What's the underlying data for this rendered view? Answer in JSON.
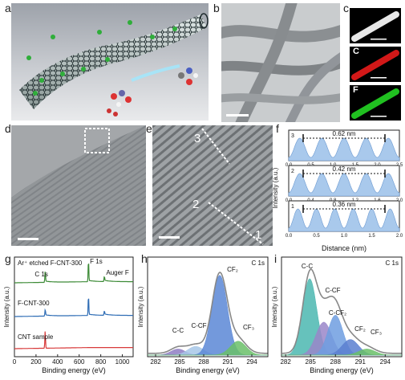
{
  "panels": {
    "a": {
      "label": "a"
    },
    "b": {
      "label": "b"
    },
    "c": {
      "label": "c",
      "channels": [
        "C",
        "F"
      ]
    },
    "d": {
      "label": "d"
    },
    "e": {
      "label": "e",
      "markers": [
        "3",
        "2",
        "1"
      ]
    },
    "f": {
      "label": "f"
    },
    "g": {
      "label": "g"
    },
    "h": {
      "label": "h"
    },
    "i": {
      "label": "i"
    }
  },
  "chart_data": [
    {
      "id": "f",
      "type": "line",
      "ylabel": "Intensity (a.u.)",
      "xlabel": "Distance (nm)",
      "subplots": [
        {
          "index": "3",
          "spacing_label": "0.62 nm",
          "xlim": [
            0,
            2.5
          ],
          "xticks": [
            "0.0",
            "0.5",
            "1.0",
            "1.5",
            "2.0",
            "2.5"
          ],
          "peaks": 5
        },
        {
          "index": "2",
          "spacing_label": "0.42 nm",
          "xlim": [
            0,
            2.0
          ],
          "xticks": [
            "0.0",
            "0.4",
            "0.8",
            "1.2",
            "1.6",
            "2.0"
          ],
          "peaks": 5
        },
        {
          "index": "1",
          "spacing_label": "0.36 nm",
          "xlim": [
            0,
            2.0
          ],
          "xticks": [
            "0.0",
            "0.5",
            "1.0",
            "1.5",
            "2.0"
          ],
          "peaks": 6
        }
      ]
    },
    {
      "id": "g",
      "type": "line",
      "xlabel": "Binding energy (eV)",
      "ylabel": "Intensity (a.u.)",
      "xlim": [
        0,
        1100
      ],
      "xticks": [
        "0",
        "200",
        "400",
        "600",
        "800",
        "1000"
      ],
      "series": [
        {
          "name": "Ar⁺ etched F-CNT-300",
          "color": "#3d8b37"
        },
        {
          "name": "F-CNT-300",
          "color": "#2f6db5"
        },
        {
          "name": "CNT sample",
          "color": "#d83a3a"
        }
      ],
      "annotations": [
        "C 1s",
        "F 1s",
        "Auger F"
      ]
    },
    {
      "id": "h",
      "type": "area",
      "xlabel": "Binding energy (eV)",
      "ylabel": "Intensity (a.u.)",
      "tag": "C 1s",
      "xlim": [
        281,
        296
      ],
      "xticks": [
        "282",
        "285",
        "288",
        "291",
        "294"
      ],
      "components": [
        {
          "name": "C-C",
          "center": 284.8,
          "height": 0.07,
          "width": 0.9,
          "color": "#8e7cc3"
        },
        {
          "name": "C-CF",
          "center": 287.0,
          "height": 0.1,
          "width": 1.0,
          "color": "#a7c7e7"
        },
        {
          "name": "CF₂",
          "center": 290.0,
          "height": 0.92,
          "width": 0.95,
          "color": "#5b87d6"
        },
        {
          "name": "CF₃",
          "center": 292.3,
          "height": 0.16,
          "width": 1.0,
          "color": "#6abf69"
        }
      ]
    },
    {
      "id": "i",
      "type": "area",
      "xlabel": "Binding energy (eV)",
      "ylabel": "Intensity (a.u.)",
      "tag": "C 1s",
      "xlim": [
        281.5,
        296
      ],
      "xticks": [
        "282",
        "285",
        "288",
        "291",
        "294"
      ],
      "components": [
        {
          "name": "C-C",
          "center": 284.9,
          "height": 0.88,
          "width": 0.85,
          "color": "#4bb7b0"
        },
        {
          "name": "C-CF",
          "center": 286.6,
          "height": 0.38,
          "width": 0.95,
          "color": "#9a86c9"
        },
        {
          "name": "C-CF₂",
          "center": 288.0,
          "height": 0.46,
          "width": 0.9,
          "color": "#6e9ee0"
        },
        {
          "name": "CF₂",
          "center": 289.8,
          "height": 0.18,
          "width": 1.0,
          "color": "#5b7fd0"
        },
        {
          "name": "CF₃",
          "center": 291.8,
          "height": 0.07,
          "width": 1.0,
          "color": "#6abf69"
        }
      ]
    }
  ]
}
